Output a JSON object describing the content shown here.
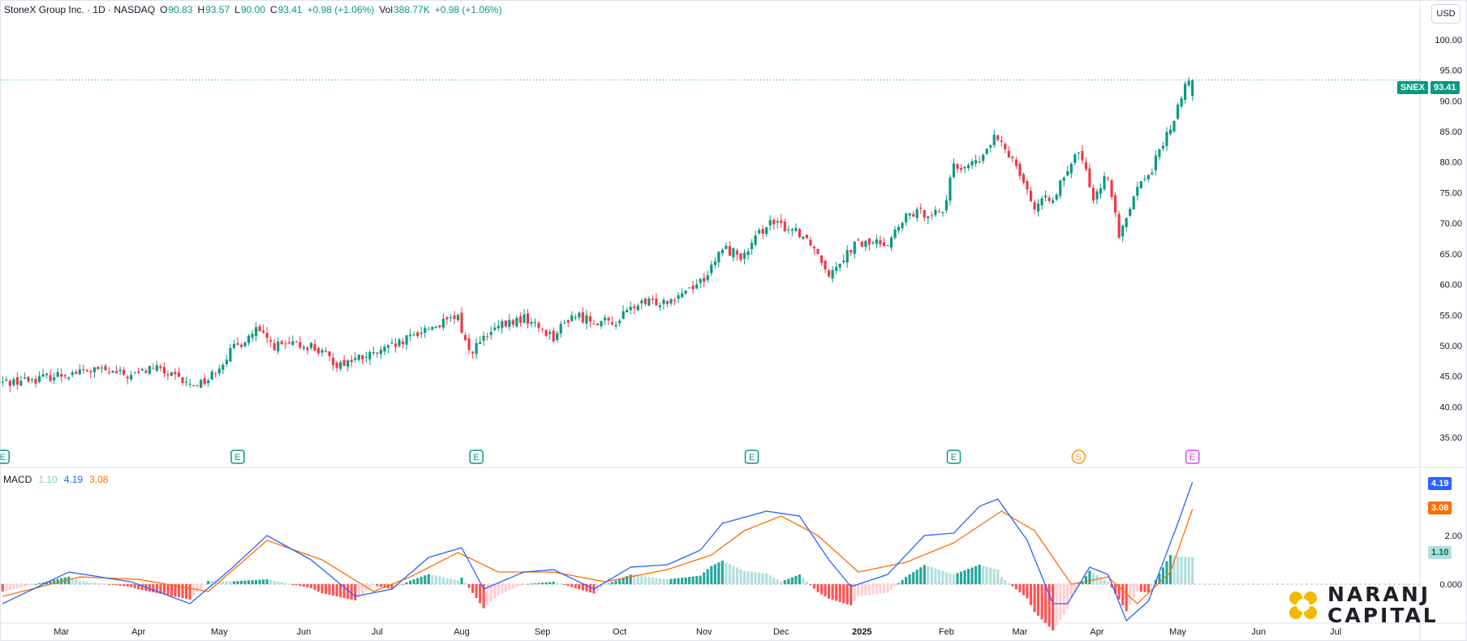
{
  "header": {
    "symbol_title": "StoneX Group Inc. · 1D · NASDAQ",
    "open_label": "O",
    "open_value": "90.83",
    "high_label": "H",
    "high_value": "93.57",
    "low_label": "L",
    "low_value": "90.00",
    "close_label": "C",
    "close_value": "93.41",
    "change": "+0.98 (+1.06%)",
    "volume_label": "Vol",
    "volume_value": "388.77K",
    "volume_change": "+0.98 (+1.06%)"
  },
  "currency_button": "USD",
  "price_tag": {
    "ticker": "SNEX",
    "value": "93.41"
  },
  "macd_header": {
    "name": "MACD",
    "histogram": "1.10",
    "macd": "4.19",
    "signal": "3.08"
  },
  "macd_tags": {
    "macd": "4.19",
    "signal": "3.08",
    "histogram": "1.10"
  },
  "events": [
    {
      "label": "E",
      "date": "2024-02-08",
      "color": "#089981"
    },
    {
      "label": "E",
      "date": "2024-05-08",
      "color": "#089981"
    },
    {
      "label": "E",
      "date": "2024-08-07",
      "color": "#089981"
    },
    {
      "label": "E",
      "date": "2024-11-20",
      "color": "#089981"
    },
    {
      "label": "E",
      "date": "2025-02-05",
      "color": "#089981"
    },
    {
      "label": "S",
      "date": "2025-03-25",
      "color": "#f7931a"
    },
    {
      "label": "E",
      "date": "2025-05-07",
      "color": "#e040fb"
    }
  ],
  "logo": {
    "line1": "NARANJ",
    "line2": "CAPITAL",
    "color": "#f5b800"
  },
  "colors": {
    "up": "#089981",
    "down": "#f23645",
    "macd_line": "#2962ff",
    "signal_line": "#ff6d00",
    "hist_up": "#26a69a",
    "hist_up_light": "#b2dfdb",
    "hist_down": "#ff5252",
    "hist_down_light": "#ffcdd2"
  },
  "chart_data": [
    {
      "type": "candlestick",
      "title": "StoneX Group Inc. · 1D · NASDAQ",
      "x_tick_labels": [
        "Mar",
        "Apr",
        "May",
        "Jun",
        "Jul",
        "Aug",
        "Sep",
        "Oct",
        "Nov",
        "Dec",
        "2025",
        "Feb",
        "Mar",
        "Apr",
        "May",
        "Jun",
        "Jul"
      ],
      "y_tick_labels": [
        "35.00",
        "40.00",
        "45.00",
        "50.00",
        "55.00",
        "60.00",
        "65.00",
        "70.00",
        "75.00",
        "80.00",
        "85.00",
        "90.00",
        "95.00",
        "100.00"
      ],
      "ylim": [
        32.5,
        102.5
      ],
      "date_range": [
        "2024-02-08",
        "2025-05-07"
      ],
      "close_anchors": [
        [
          "2024-02-08",
          44.0
        ],
        [
          "2024-02-20",
          44.5
        ],
        [
          "2024-03-05",
          45.5
        ],
        [
          "2024-03-15",
          46.0
        ],
        [
          "2024-03-28",
          45.0
        ],
        [
          "2024-04-05",
          46.5
        ],
        [
          "2024-04-19",
          43.5
        ],
        [
          "2024-04-26",
          44.5
        ],
        [
          "2024-05-06",
          49.0
        ],
        [
          "2024-05-15",
          52.5
        ],
        [
          "2024-05-22",
          50.0
        ],
        [
          "2024-06-05",
          50.0
        ],
        [
          "2024-06-14",
          47.0
        ],
        [
          "2024-06-28",
          48.5
        ],
        [
          "2024-07-10",
          50.5
        ],
        [
          "2024-07-17",
          52.5
        ],
        [
          "2024-07-31",
          54.5
        ],
        [
          "2024-08-05",
          49.0
        ],
        [
          "2024-08-15",
          53.0
        ],
        [
          "2024-08-26",
          54.5
        ],
        [
          "2024-09-05",
          51.5
        ],
        [
          "2024-09-12",
          55.0
        ],
        [
          "2024-09-27",
          53.5
        ],
        [
          "2024-10-07",
          56.5
        ],
        [
          "2024-10-18",
          57.5
        ],
        [
          "2024-10-31",
          60.5
        ],
        [
          "2024-11-05",
          62.5
        ],
        [
          "2024-11-08",
          66.0
        ],
        [
          "2024-11-18",
          64.5
        ],
        [
          "2024-11-26",
          70.0
        ],
        [
          "2024-12-06",
          69.0
        ],
        [
          "2024-12-12",
          67.0
        ],
        [
          "2024-12-19",
          62.0
        ],
        [
          "2024-12-30",
          66.5
        ],
        [
          "2025-01-10",
          67.0
        ],
        [
          "2025-01-20",
          71.5
        ],
        [
          "2025-01-31",
          72.0
        ],
        [
          "2025-02-05",
          79.0
        ],
        [
          "2025-02-14",
          80.0
        ],
        [
          "2025-02-20",
          84.0
        ],
        [
          "2025-02-28",
          80.0
        ],
        [
          "2025-03-07",
          72.5
        ],
        [
          "2025-03-14",
          74.5
        ],
        [
          "2025-03-20",
          78.0
        ],
        [
          "2025-03-25",
          82.0
        ],
        [
          "2025-03-31",
          74.5
        ],
        [
          "2025-04-04",
          78.0
        ],
        [
          "2025-04-09",
          67.5
        ],
        [
          "2025-04-15",
          75.0
        ],
        [
          "2025-04-22",
          79.0
        ],
        [
          "2025-04-25",
          83.0
        ],
        [
          "2025-04-30",
          87.0
        ],
        [
          "2025-05-05",
          92.5
        ],
        [
          "2025-05-07",
          93.41
        ]
      ],
      "last": {
        "open": 90.83,
        "high": 93.57,
        "low": 90.0,
        "close": 93.41
      }
    },
    {
      "type": "line",
      "title": "MACD",
      "series": [
        {
          "name": "MACD",
          "values_anchors": [
            [
              "2024-02-08",
              -0.8
            ],
            [
              "2024-03-05",
              0.5
            ],
            [
              "2024-03-28",
              0.1
            ],
            [
              "2024-04-19",
              -0.8
            ],
            [
              "2024-05-06",
              0.6
            ],
            [
              "2024-05-20",
              2.0
            ],
            [
              "2024-06-05",
              1.0
            ],
            [
              "2024-06-21",
              -0.5
            ],
            [
              "2024-07-05",
              -0.2
            ],
            [
              "2024-07-19",
              1.1
            ],
            [
              "2024-08-01",
              1.5
            ],
            [
              "2024-08-09",
              -0.2
            ],
            [
              "2024-08-26",
              0.5
            ],
            [
              "2024-09-05",
              0.6
            ],
            [
              "2024-09-20",
              -0.2
            ],
            [
              "2024-10-04",
              0.7
            ],
            [
              "2024-10-18",
              0.8
            ],
            [
              "2024-10-31",
              1.4
            ],
            [
              "2024-11-08",
              2.5
            ],
            [
              "2024-11-26",
              3.0
            ],
            [
              "2024-12-09",
              2.8
            ],
            [
              "2024-12-19",
              1.0
            ],
            [
              "2024-12-27",
              -0.1
            ],
            [
              "2025-01-10",
              0.4
            ],
            [
              "2025-01-24",
              2.0
            ],
            [
              "2025-02-05",
              2.1
            ],
            [
              "2025-02-14",
              3.2
            ],
            [
              "2025-02-21",
              3.5
            ],
            [
              "2025-03-05",
              1.8
            ],
            [
              "2025-03-14",
              -0.8
            ],
            [
              "2025-03-20",
              -0.8
            ],
            [
              "2025-03-28",
              0.7
            ],
            [
              "2025-04-04",
              0.4
            ],
            [
              "2025-04-11",
              -1.5
            ],
            [
              "2025-04-21",
              -0.7
            ],
            [
              "2025-05-01",
              2.5
            ],
            [
              "2025-05-07",
              4.19
            ]
          ]
        },
        {
          "name": "Signal",
          "values_anchors": [
            [
              "2024-02-08",
              -0.5
            ],
            [
              "2024-03-10",
              0.3
            ],
            [
              "2024-04-01",
              0.2
            ],
            [
              "2024-04-26",
              -0.3
            ],
            [
              "2024-05-20",
              1.8
            ],
            [
              "2024-06-10",
              1.0
            ],
            [
              "2024-06-28",
              -0.3
            ],
            [
              "2024-07-12",
              0.3
            ],
            [
              "2024-07-31",
              1.3
            ],
            [
              "2024-08-15",
              0.5
            ],
            [
              "2024-09-05",
              0.5
            ],
            [
              "2024-09-25",
              0.1
            ],
            [
              "2024-10-18",
              0.6
            ],
            [
              "2024-11-05",
              1.2
            ],
            [
              "2024-11-18",
              2.2
            ],
            [
              "2024-12-02",
              2.8
            ],
            [
              "2024-12-16",
              2.0
            ],
            [
              "2024-12-31",
              0.5
            ],
            [
              "2025-01-17",
              0.9
            ],
            [
              "2025-02-05",
              1.7
            ],
            [
              "2025-02-24",
              3.0
            ],
            [
              "2025-03-07",
              2.2
            ],
            [
              "2025-03-21",
              0.0
            ],
            [
              "2025-04-04",
              0.3
            ],
            [
              "2025-04-16",
              -0.8
            ],
            [
              "2025-04-29",
              0.5
            ],
            [
              "2025-05-07",
              3.08
            ]
          ]
        }
      ],
      "y_tick_labels": [
        "0.000",
        "2.00"
      ],
      "ylim": [
        -1.6,
        4.6
      ]
    }
  ]
}
